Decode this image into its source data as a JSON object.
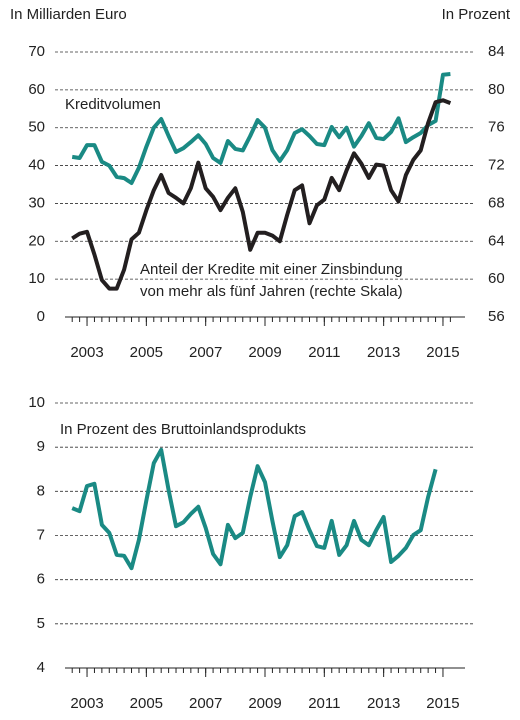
{
  "chart_data": [
    {
      "type": "line",
      "y_label": "In Milliarden Euro",
      "y2_label": "In Prozent",
      "annotations": [
        "Kreditvolumen",
        "Anteil der Kredite mit einer Zinsbindung",
        "von mehr als fünf Jahren (rechte Skala)"
      ],
      "x": [
        2002.5,
        2002.75,
        2003,
        2003.25,
        2003.5,
        2003.75,
        2004,
        2004.25,
        2004.5,
        2004.75,
        2005,
        2005.25,
        2005.5,
        2005.75,
        2006,
        2006.25,
        2006.5,
        2006.75,
        2007,
        2007.25,
        2007.5,
        2007.75,
        2008,
        2008.25,
        2008.5,
        2008.75,
        2009,
        2009.25,
        2009.5,
        2009.75,
        2010,
        2010.25,
        2010.5,
        2010.75,
        2011,
        2011.25,
        2011.5,
        2011.75,
        2012,
        2012.25,
        2012.5,
        2012.75,
        2013,
        2013.25,
        2013.5,
        2013.75,
        2014,
        2014.25,
        2014.5,
        2014.75,
        2015,
        2015.25
      ],
      "series": [
        {
          "name": "Kreditvolumen",
          "color": "#1a8a84",
          "axis": "y",
          "values": [
            42.3,
            42,
            45.4,
            45.4,
            41,
            40,
            37,
            36.7,
            35.4,
            39.4,
            45,
            50,
            52.3,
            47.8,
            43.6,
            44.6,
            46.2,
            48,
            45.7,
            42,
            40.7,
            46.5,
            44.4,
            44,
            47.8,
            52,
            50,
            44.1,
            41.2,
            44.1,
            48.6,
            49.6,
            47.8,
            45.7,
            45.4,
            50.2,
            47.5,
            50,
            45,
            47.8,
            51.2,
            47.3,
            47,
            48.9,
            52.5,
            46.2,
            47.5,
            48.6,
            50.7,
            51.8,
            64,
            64.2
          ]
        },
        {
          "name": "Anteil der Kredite mit einer Zinsbindung von mehr als fünf Jahren",
          "color": "#231f20",
          "axis": "y2",
          "values": [
            64.3,
            64.8,
            65,
            62.6,
            59.9,
            59,
            59,
            61,
            64.2,
            64.9,
            67.3,
            69.4,
            71,
            69.1,
            68.6,
            68,
            69.6,
            72.3,
            69.6,
            68.7,
            67.3,
            68.6,
            69.6,
            67.1,
            63.1,
            64.9,
            64.9,
            64.6,
            64,
            66.8,
            69.4,
            69.9,
            65.9,
            67.8,
            68.4,
            70.7,
            69.4,
            71.5,
            73.3,
            72.2,
            70.7,
            72.1,
            72,
            69.4,
            68.2,
            71,
            72.6,
            73.6,
            76.5,
            78.7,
            78.9,
            78.6
          ]
        }
      ],
      "xlim": [
        2001.92,
        2016.08
      ],
      "xticks": [
        2003,
        2005,
        2007,
        2009,
        2011,
        2013,
        2015
      ],
      "ylim": [
        0,
        70
      ],
      "yticks": [
        0,
        10,
        20,
        30,
        40,
        50,
        60,
        70
      ],
      "y2lim": [
        56,
        84
      ],
      "y2ticks": [
        56,
        60,
        64,
        68,
        72,
        76,
        80,
        84
      ],
      "grid": true
    },
    {
      "type": "line",
      "annotations": [
        "In Prozent des Bruttoinlandsprodukts"
      ],
      "x": [
        2002.5,
        2002.75,
        2003,
        2003.25,
        2003.5,
        2003.75,
        2004,
        2004.25,
        2004.5,
        2004.75,
        2005,
        2005.25,
        2005.5,
        2005.75,
        2006,
        2006.25,
        2006.5,
        2006.75,
        2007,
        2007.25,
        2007.5,
        2007.75,
        2008,
        2008.25,
        2008.5,
        2008.75,
        2009,
        2009.25,
        2009.5,
        2009.75,
        2010,
        2010.25,
        2010.5,
        2010.75,
        2011,
        2011.25,
        2011.5,
        2011.75,
        2012,
        2012.25,
        2012.5,
        2012.75,
        2013,
        2013.25,
        2013.5,
        2013.75,
        2014,
        2014.25,
        2014.5,
        2014.75
      ],
      "series": [
        {
          "name": "In Prozent des Bruttoinlandsprodukts",
          "color": "#1a8a84",
          "axis": "y",
          "values": [
            7.62,
            7.55,
            8.12,
            8.17,
            7.24,
            7.06,
            6.56,
            6.54,
            6.26,
            6.9,
            7.8,
            8.64,
            8.94,
            8.03,
            7.21,
            7.3,
            7.49,
            7.65,
            7.17,
            6.58,
            6.35,
            7.24,
            6.94,
            7.06,
            7.87,
            8.57,
            8.21,
            7.33,
            6.51,
            6.78,
            7.44,
            7.53,
            7.12,
            6.76,
            6.72,
            7.33,
            6.56,
            6.78,
            7.33,
            6.9,
            6.78,
            7.12,
            7.42,
            6.4,
            6.54,
            6.72,
            7.01,
            7.12,
            7.87,
            8.5
          ]
        }
      ],
      "xlim": [
        2001.92,
        2016.08
      ],
      "xticks": [
        2003,
        2005,
        2007,
        2009,
        2011,
        2013,
        2015
      ],
      "ylim": [
        4,
        10
      ],
      "yticks": [
        4,
        5,
        6,
        7,
        8,
        9,
        10
      ],
      "grid": true
    }
  ]
}
